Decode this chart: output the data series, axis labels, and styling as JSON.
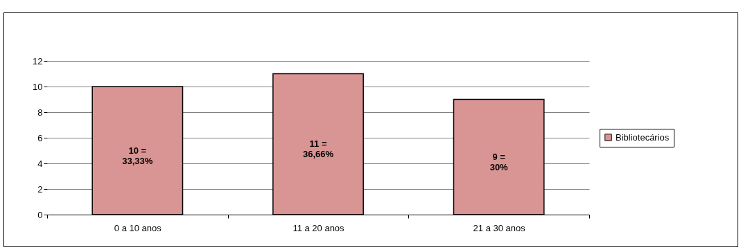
{
  "chart_data": {
    "type": "bar",
    "categories": [
      "0 a 10 anos",
      "11 a 20 anos",
      "21 a 30 anos"
    ],
    "series": [
      {
        "name": "Bibliotecários",
        "color": "#d99594",
        "values": [
          10,
          11,
          9
        ],
        "value_labels": [
          "10 =\n33,33%",
          "11 =\n36,66%",
          "9 =\n30%"
        ]
      }
    ],
    "ylim": [
      0,
      12
    ],
    "yticks": [
      0,
      2,
      4,
      6,
      8,
      10,
      12
    ],
    "grid": "y",
    "legend": "right"
  }
}
